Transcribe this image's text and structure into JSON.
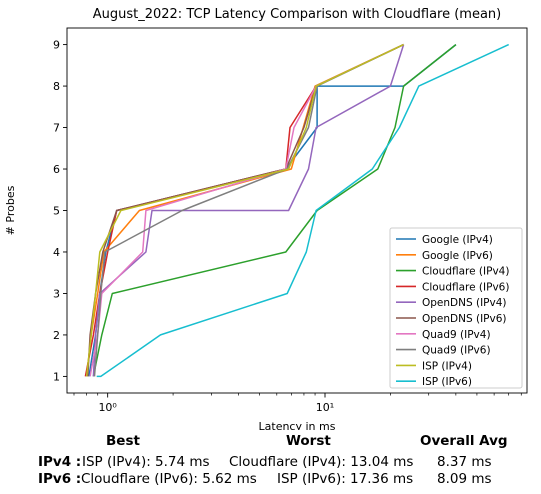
{
  "chart_data": {
    "type": "line",
    "title": "August_2022: TCP Latency Comparison with Cloudflare (mean)",
    "xlabel": "Latency in ms",
    "ylabel": "# Probes",
    "xscale": "log",
    "xlim": [
      0.65,
      85
    ],
    "ylim": [
      0.6,
      9.4
    ],
    "x_ticks": [
      1,
      10
    ],
    "x_tick_labels": [
      "10⁰",
      "10¹"
    ],
    "y_ticks": [
      1,
      2,
      3,
      4,
      5,
      6,
      7,
      8,
      9
    ],
    "grid": false,
    "legend_position": "lower right",
    "series": [
      {
        "name": "Google (IPv4)",
        "color": "#1f77b4",
        "points": [
          [
            0.82,
            1
          ],
          [
            0.88,
            2
          ],
          [
            0.92,
            3
          ],
          [
            0.98,
            4
          ],
          [
            1.1,
            5
          ],
          [
            6.6,
            6
          ],
          [
            9.2,
            7
          ],
          [
            9.2,
            8
          ],
          [
            23,
            8
          ],
          [
            40,
            9
          ]
        ]
      },
      {
        "name": "Google (IPv6)",
        "color": "#ff7f0e",
        "points": [
          [
            0.8,
            1
          ],
          [
            0.84,
            2
          ],
          [
            0.9,
            3
          ],
          [
            0.96,
            4
          ],
          [
            1.4,
            5
          ],
          [
            7,
            6
          ],
          [
            9,
            8
          ],
          [
            23,
            9
          ]
        ]
      },
      {
        "name": "Cloudflare (IPv4)",
        "color": "#2ca02c",
        "points": [
          [
            0.86,
            1
          ],
          [
            0.94,
            2
          ],
          [
            1.05,
            3
          ],
          [
            6.6,
            4
          ],
          [
            9.2,
            5
          ],
          [
            17.5,
            6
          ],
          [
            21,
            7
          ],
          [
            23,
            8
          ],
          [
            40,
            9
          ]
        ]
      },
      {
        "name": "Cloudflare (IPv6)",
        "color": "#d62728",
        "points": [
          [
            0.79,
            1
          ],
          [
            0.86,
            2
          ],
          [
            0.92,
            3
          ],
          [
            1.0,
            4
          ],
          [
            1.1,
            5
          ],
          [
            6.6,
            6
          ],
          [
            6.9,
            7
          ],
          [
            9.1,
            8
          ],
          [
            23,
            9
          ]
        ]
      },
      {
        "name": "OpenDNS (IPv4)",
        "color": "#9467bd",
        "points": [
          [
            0.86,
            1
          ],
          [
            0.88,
            2
          ],
          [
            0.92,
            3
          ],
          [
            1.5,
            4
          ],
          [
            1.6,
            5
          ],
          [
            6.8,
            5
          ],
          [
            8.4,
            6
          ],
          [
            9.1,
            7
          ],
          [
            20,
            8
          ],
          [
            23,
            9
          ]
        ]
      },
      {
        "name": "OpenDNS (IPv6)",
        "color": "#8c564b",
        "points": [
          [
            0.81,
            1
          ],
          [
            0.83,
            2
          ],
          [
            0.88,
            3
          ],
          [
            0.95,
            4
          ],
          [
            1.1,
            5
          ],
          [
            6.6,
            6
          ],
          [
            8,
            7
          ],
          [
            9.1,
            8
          ],
          [
            23,
            9
          ]
        ]
      },
      {
        "name": "Quad9 (IPv4)",
        "color": "#e377c2",
        "points": [
          [
            0.83,
            1
          ],
          [
            0.9,
            2
          ],
          [
            0.94,
            3
          ],
          [
            1.45,
            4
          ],
          [
            1.5,
            5
          ],
          [
            6.6,
            6
          ],
          [
            7.2,
            7
          ],
          [
            9.1,
            8
          ],
          [
            23,
            9
          ]
        ]
      },
      {
        "name": "Quad9 (IPv6)",
        "color": "#7f7f7f",
        "points": [
          [
            0.87,
            1
          ],
          [
            0.9,
            2
          ],
          [
            0.93,
            3
          ],
          [
            0.97,
            4
          ],
          [
            2.2,
            5
          ],
          [
            6.7,
            6
          ],
          [
            8.4,
            7
          ],
          [
            9.2,
            8
          ],
          [
            23,
            9
          ]
        ]
      },
      {
        "name": "ISP (IPv4)",
        "color": "#bcbd22",
        "points": [
          [
            0.8,
            1
          ],
          [
            0.84,
            2
          ],
          [
            0.88,
            3
          ],
          [
            0.92,
            4
          ],
          [
            1.15,
            5
          ],
          [
            6.8,
            6
          ],
          [
            8.2,
            7
          ],
          [
            9.1,
            8
          ],
          [
            23,
            9
          ]
        ]
      },
      {
        "name": "ISP (IPv6)",
        "color": "#17becf",
        "points": [
          [
            0.89,
            1
          ],
          [
            0.93,
            1
          ],
          [
            1.75,
            2
          ],
          [
            6.7,
            3
          ],
          [
            8.2,
            4
          ],
          [
            9.1,
            5
          ],
          [
            16.5,
            6
          ],
          [
            22,
            7
          ],
          [
            27,
            8
          ],
          [
            70,
            9
          ]
        ]
      }
    ]
  },
  "summary": {
    "headers": {
      "best": "Best",
      "worst": "Worst",
      "avg": "Overall Avg"
    },
    "rows": [
      {
        "label": "IPv4 :",
        "best": "ISP (IPv4): 5.74 ms",
        "worst": "Cloudflare (IPv4): 13.04 ms",
        "avg": "8.37 ms"
      },
      {
        "label": "IPv6 :",
        "best": "Cloudflare (IPv6): 5.62 ms",
        "worst": "ISP (IPv6): 17.36 ms",
        "avg": "8.09 ms"
      }
    ]
  }
}
